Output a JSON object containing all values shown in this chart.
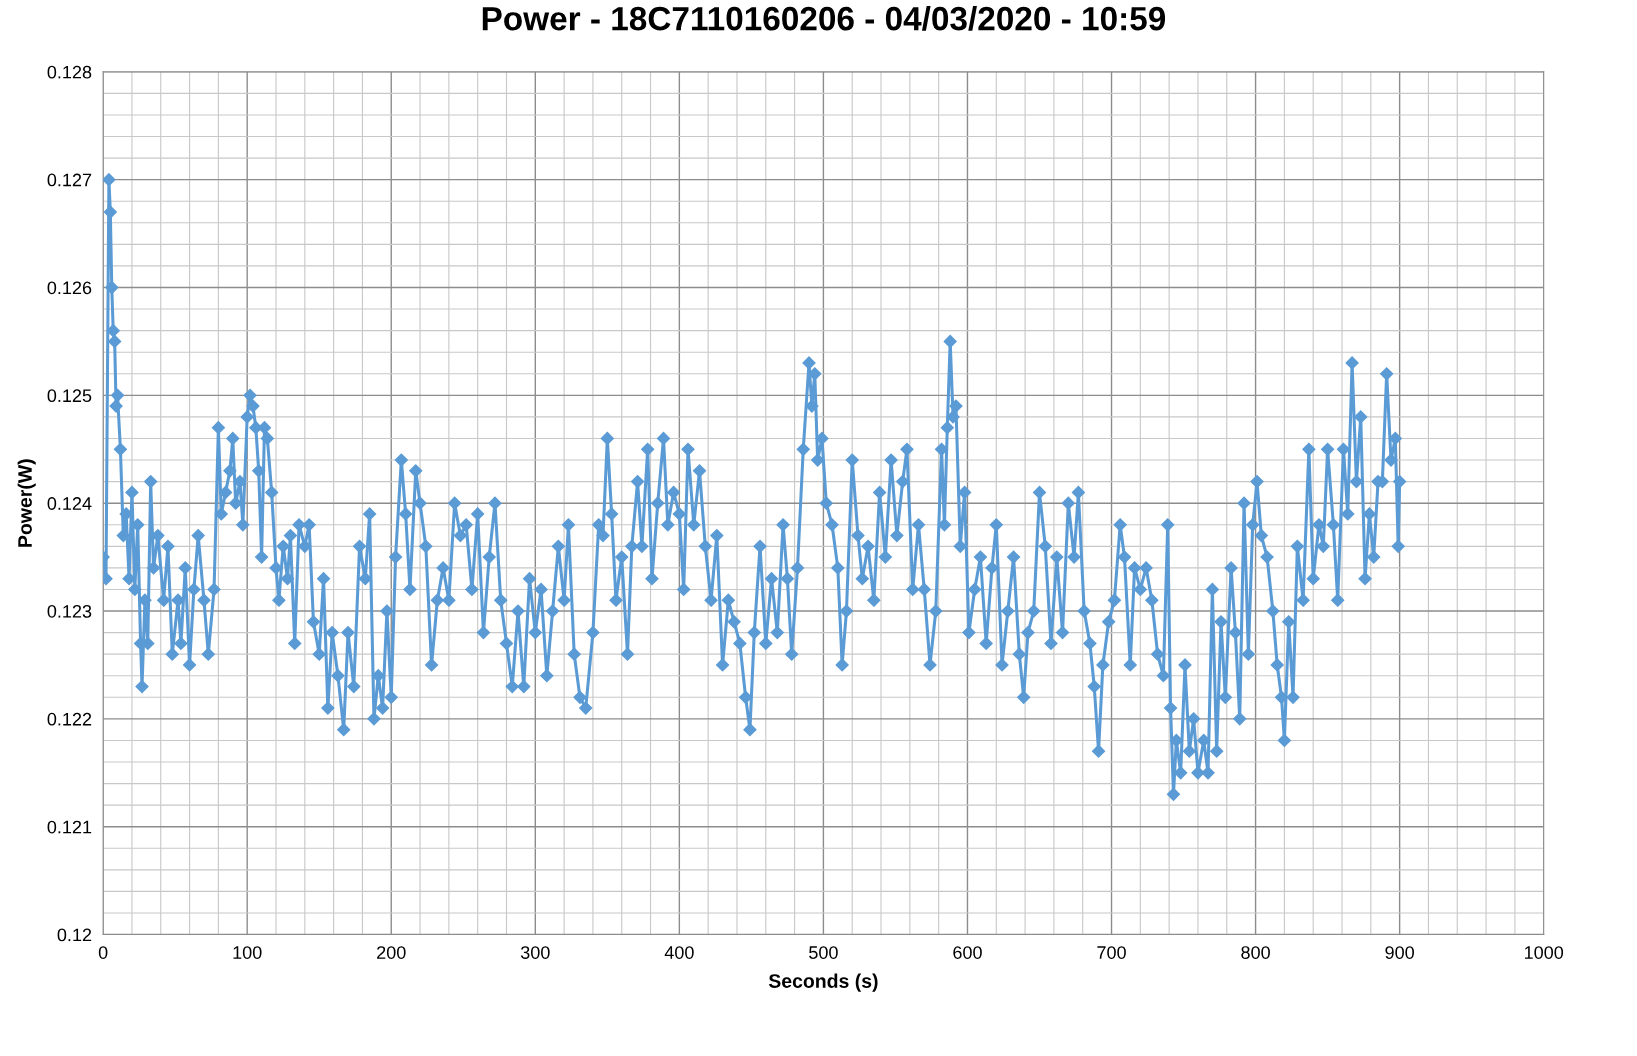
{
  "chart_data": {
    "type": "line",
    "title": "Power - 18C7110160206 - 04/03/2020 - 10:59",
    "xlabel": "Seconds (s)",
    "ylabel": "Power(W)",
    "xlim": [
      0,
      1000
    ],
    "xticks": [
      0,
      100,
      200,
      300,
      400,
      500,
      600,
      700,
      800,
      900,
      1000
    ],
    "ylim": [
      0.12,
      0.128
    ],
    "yticks": [
      0.12,
      0.121,
      0.122,
      0.123,
      0.124,
      0.125,
      0.126,
      0.127,
      0.128
    ],
    "grid": true,
    "legend": false,
    "marker": "diamond",
    "line_style": "solid",
    "series": [
      {
        "color": "#5b9bd5",
        "x": [
          0,
          2,
          4,
          5,
          6,
          7,
          8,
          9,
          10,
          12,
          14,
          16,
          18,
          20,
          22,
          24,
          26,
          27,
          29,
          31,
          33,
          35,
          38,
          42,
          45,
          48,
          52,
          54,
          57,
          60,
          63,
          66,
          70,
          73,
          77,
          80,
          82,
          85,
          88,
          90,
          92,
          95,
          97,
          100,
          102,
          104,
          106,
          108,
          110,
          112,
          114,
          117,
          120,
          122,
          125,
          128,
          130,
          133,
          136,
          140,
          143,
          146,
          150,
          153,
          156,
          159,
          163,
          167,
          170,
          174,
          178,
          182,
          185,
          188,
          191,
          194,
          197,
          200,
          203,
          207,
          210,
          213,
          217,
          220,
          224,
          228,
          232,
          236,
          240,
          244,
          248,
          252,
          256,
          260,
          264,
          268,
          272,
          276,
          280,
          284,
          288,
          292,
          296,
          300,
          304,
          308,
          312,
          316,
          320,
          323,
          327,
          331,
          335,
          340,
          344,
          347,
          350,
          353,
          356,
          360,
          364,
          367,
          371,
          374,
          378,
          381,
          385,
          389,
          392,
          396,
          400,
          403,
          406,
          410,
          414,
          418,
          422,
          426,
          430,
          434,
          438,
          442,
          446,
          449,
          452,
          456,
          460,
          464,
          468,
          472,
          475,
          478,
          482,
          486,
          490,
          492,
          494,
          496,
          499,
          502,
          506,
          510,
          513,
          516,
          520,
          524,
          527,
          531,
          535,
          539,
          543,
          547,
          551,
          555,
          558,
          562,
          566,
          570,
          574,
          578,
          582,
          584,
          586,
          588,
          590,
          592,
          595,
          598,
          601,
          605,
          609,
          613,
          617,
          620,
          624,
          628,
          632,
          636,
          639,
          642,
          646,
          650,
          654,
          658,
          662,
          666,
          670,
          674,
          677,
          681,
          685,
          688,
          691,
          694,
          698,
          702,
          706,
          709,
          713,
          716,
          720,
          724,
          728,
          732,
          736,
          739,
          741,
          743,
          745,
          748,
          751,
          754,
          757,
          760,
          764,
          767,
          770,
          773,
          776,
          779,
          783,
          786,
          789,
          792,
          795,
          798,
          801,
          804,
          808,
          812,
          815,
          818,
          820,
          823,
          826,
          829,
          833,
          837,
          840,
          844,
          847,
          850,
          854,
          857,
          861,
          864,
          867,
          870,
          873,
          876,
          879,
          882,
          885,
          888,
          891,
          894,
          897,
          899,
          900
        ],
        "values": [
          0.1235,
          0.1233,
          0.127,
          0.1267,
          0.126,
          0.1256,
          0.1255,
          0.1249,
          0.125,
          0.1245,
          0.1237,
          0.1239,
          0.1233,
          0.1241,
          0.1232,
          0.1238,
          0.1227,
          0.1223,
          0.1231,
          0.1227,
          0.1242,
          0.1234,
          0.1237,
          0.1231,
          0.1236,
          0.1226,
          0.1231,
          0.1227,
          0.1234,
          0.1225,
          0.1232,
          0.1237,
          0.1231,
          0.1226,
          0.1232,
          0.1247,
          0.1239,
          0.1241,
          0.1243,
          0.1246,
          0.124,
          0.1242,
          0.1238,
          0.1248,
          0.125,
          0.1249,
          0.1247,
          0.1243,
          0.1235,
          0.1247,
          0.1246,
          0.1241,
          0.1234,
          0.1231,
          0.1236,
          0.1233,
          0.1237,
          0.1227,
          0.1238,
          0.1236,
          0.1238,
          0.1229,
          0.1226,
          0.1233,
          0.1221,
          0.1228,
          0.1224,
          0.1219,
          0.1228,
          0.1223,
          0.1236,
          0.1233,
          0.1239,
          0.122,
          0.1224,
          0.1221,
          0.123,
          0.1222,
          0.1235,
          0.1244,
          0.1239,
          0.1232,
          0.1243,
          0.124,
          0.1236,
          0.1225,
          0.1231,
          0.1234,
          0.1231,
          0.124,
          0.1237,
          0.1238,
          0.1232,
          0.1239,
          0.1228,
          0.1235,
          0.124,
          0.1231,
          0.1227,
          0.1223,
          0.123,
          0.1223,
          0.1233,
          0.1228,
          0.1232,
          0.1224,
          0.123,
          0.1236,
          0.1231,
          0.1238,
          0.1226,
          0.1222,
          0.1221,
          0.1228,
          0.1238,
          0.1237,
          0.1246,
          0.1239,
          0.1231,
          0.1235,
          0.1226,
          0.1236,
          0.1242,
          0.1236,
          0.1245,
          0.1233,
          0.124,
          0.1246,
          0.1238,
          0.1241,
          0.1239,
          0.1232,
          0.1245,
          0.1238,
          0.1243,
          0.1236,
          0.1231,
          0.1237,
          0.1225,
          0.1231,
          0.1229,
          0.1227,
          0.1222,
          0.1219,
          0.1228,
          0.1236,
          0.1227,
          0.1233,
          0.1228,
          0.1238,
          0.1233,
          0.1226,
          0.1234,
          0.1245,
          0.1253,
          0.1249,
          0.1252,
          0.1244,
          0.1246,
          0.124,
          0.1238,
          0.1234,
          0.1225,
          0.123,
          0.1244,
          0.1237,
          0.1233,
          0.1236,
          0.1231,
          0.1241,
          0.1235,
          0.1244,
          0.1237,
          0.1242,
          0.1245,
          0.1232,
          0.1238,
          0.1232,
          0.1225,
          0.123,
          0.1245,
          0.1238,
          0.1247,
          0.1255,
          0.1248,
          0.1249,
          0.1236,
          0.1241,
          0.1228,
          0.1232,
          0.1235,
          0.1227,
          0.1234,
          0.1238,
          0.1225,
          0.123,
          0.1235,
          0.1226,
          0.1222,
          0.1228,
          0.123,
          0.1241,
          0.1236,
          0.1227,
          0.1235,
          0.1228,
          0.124,
          0.1235,
          0.1241,
          0.123,
          0.1227,
          0.1223,
          0.1217,
          0.1225,
          0.1229,
          0.1231,
          0.1238,
          0.1235,
          0.1225,
          0.1234,
          0.1232,
          0.1234,
          0.1231,
          0.1226,
          0.1224,
          0.1238,
          0.1221,
          0.1213,
          0.1218,
          0.1215,
          0.1225,
          0.1217,
          0.122,
          0.1215,
          0.1218,
          0.1215,
          0.1232,
          0.1217,
          0.1229,
          0.1222,
          0.1234,
          0.1228,
          0.122,
          0.124,
          0.1226,
          0.1238,
          0.1242,
          0.1237,
          0.1235,
          0.123,
          0.1225,
          0.1222,
          0.1218,
          0.1229,
          0.1222,
          0.1236,
          0.1231,
          0.1245,
          0.1233,
          0.1238,
          0.1236,
          0.1245,
          0.1238,
          0.1231,
          0.1245,
          0.1239,
          0.1253,
          0.1242,
          0.1248,
          0.1233,
          0.1239,
          0.1235,
          0.1242,
          0.1242,
          0.1252,
          0.1244,
          0.1246,
          0.1236,
          0.1242
        ]
      }
    ]
  }
}
